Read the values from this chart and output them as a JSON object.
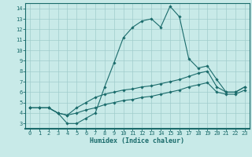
{
  "title": "",
  "xlabel": "Humidex (Indice chaleur)",
  "xlim": [
    -0.5,
    23.5
  ],
  "ylim": [
    2.5,
    14.5
  ],
  "xticks": [
    0,
    1,
    2,
    3,
    4,
    5,
    6,
    7,
    8,
    9,
    10,
    11,
    12,
    13,
    14,
    15,
    16,
    17,
    18,
    19,
    20,
    21,
    22,
    23
  ],
  "yticks": [
    3,
    4,
    5,
    6,
    7,
    8,
    9,
    10,
    11,
    12,
    13,
    14
  ],
  "bg_color": "#c8eae8",
  "grid_color": "#a0cccc",
  "line_color": "#1a6b6b",
  "line1_x": [
    0,
    1,
    2,
    3,
    4,
    5,
    6,
    7,
    8,
    9,
    10,
    11,
    12,
    13,
    14,
    15,
    16,
    17,
    18,
    19,
    20,
    21,
    22,
    23
  ],
  "line1_y": [
    4.5,
    4.5,
    4.5,
    4.0,
    3.0,
    3.0,
    3.5,
    4.0,
    6.5,
    8.8,
    11.2,
    12.2,
    12.8,
    13.0,
    12.2,
    14.2,
    13.2,
    9.2,
    8.3,
    8.5,
    7.2,
    6.0,
    6.0,
    6.5
  ],
  "line2_x": [
    0,
    1,
    2,
    3,
    4,
    5,
    6,
    7,
    8,
    9,
    10,
    11,
    12,
    13,
    14,
    15,
    16,
    17,
    18,
    19,
    20,
    21,
    22,
    23
  ],
  "line2_y": [
    4.5,
    4.5,
    4.5,
    4.0,
    3.8,
    4.5,
    5.0,
    5.5,
    5.8,
    6.0,
    6.2,
    6.3,
    6.5,
    6.6,
    6.8,
    7.0,
    7.2,
    7.5,
    7.8,
    8.0,
    6.5,
    6.0,
    6.0,
    6.5
  ],
  "line3_x": [
    0,
    1,
    2,
    3,
    4,
    5,
    6,
    7,
    8,
    9,
    10,
    11,
    12,
    13,
    14,
    15,
    16,
    17,
    18,
    19,
    20,
    21,
    22,
    23
  ],
  "line3_y": [
    4.5,
    4.5,
    4.5,
    4.0,
    3.8,
    4.0,
    4.3,
    4.5,
    4.8,
    5.0,
    5.2,
    5.3,
    5.5,
    5.6,
    5.8,
    6.0,
    6.2,
    6.5,
    6.7,
    6.9,
    6.0,
    5.8,
    5.8,
    6.2
  ],
  "marker": "D",
  "markersize": 1.8,
  "linewidth": 0.8,
  "tick_fontsize": 5.0,
  "xlabel_fontsize": 6.0,
  "spine_color": "#1a6b6b",
  "bottom_band_color": "#2a7a7a"
}
